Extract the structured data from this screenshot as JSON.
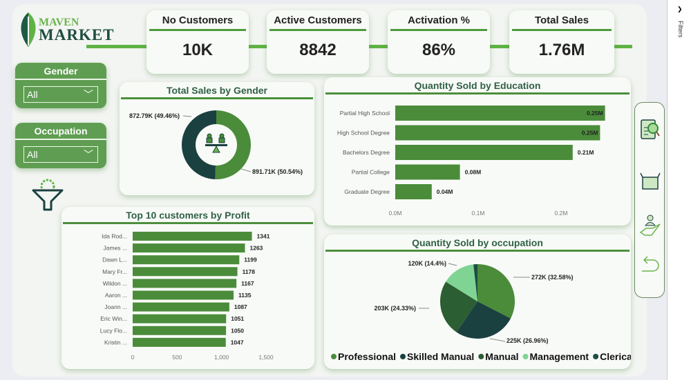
{
  "brand": {
    "line1": "MAVEN",
    "line2": "MARKET"
  },
  "kpis": [
    {
      "title": "No Customers",
      "value": "10K"
    },
    {
      "title": "Active Customers",
      "value": "8842"
    },
    {
      "title": "Activation %",
      "value": "86%"
    },
    {
      "title": "Total Sales",
      "value": "1.76M"
    }
  ],
  "slicers": [
    {
      "title": "Gender",
      "value": "All"
    },
    {
      "title": "Occupation",
      "value": "All"
    }
  ],
  "filters_pane": {
    "label": "Filters"
  },
  "nav_icons": [
    "report-search-icon",
    "product-box-icon",
    "customer-hand-icon",
    "back-arrow-icon"
  ],
  "colors": {
    "primary": "#4a8c3a",
    "dark": "#1b4040",
    "accent": "#5fb345"
  },
  "chart_data": [
    {
      "type": "pie",
      "title": "Total Sales by Gender",
      "donut": true,
      "slices": [
        {
          "value": 872.79,
          "percent": 49.46,
          "label": "872.79K (49.46%)",
          "color": "#1b4040"
        },
        {
          "value": 891.71,
          "percent": 50.54,
          "label": "891.71K (50.54%)",
          "color": "#4a8c3a"
        }
      ]
    },
    {
      "type": "bar",
      "title": "Quantity Sold by Education",
      "orientation": "horizontal",
      "categories": [
        "Partial High School",
        "High School Degree",
        "Bachelors Degree",
        "Partial College",
        "Graduate Degree"
      ],
      "values": [
        0.253,
        0.247,
        0.214,
        0.078,
        0.044
      ],
      "data_labels": [
        "0.25M",
        "0.25M",
        "0.21M",
        "0.08M",
        "0.04M"
      ],
      "xticks": [
        "0.0M",
        "0.1M",
        "0.2M"
      ],
      "xlim": [
        0,
        0.27
      ],
      "grid": false
    },
    {
      "type": "bar",
      "title": "Top 10 customers by Profit",
      "orientation": "horizontal",
      "categories": [
        "Ida Rod...",
        "James ...",
        "Dawn L...",
        "Mary Fr...",
        "Wildon ...",
        "Aaron ...",
        "Joann ...",
        "Eric Win...",
        "Lucy Flo...",
        "Kristin ..."
      ],
      "values": [
        1341,
        1263,
        1199,
        1178,
        1167,
        1135,
        1087,
        1051,
        1050,
        1047
      ],
      "xticks": [
        "0",
        "500",
        "1,000",
        "1,500"
      ],
      "xlim": [
        0,
        1500
      ],
      "grid": false
    },
    {
      "type": "pie",
      "title": "Quantity Sold by occupation",
      "legend": "bottom",
      "slices": [
        {
          "name": "Professional",
          "percent": 32.58,
          "label": "272K (32.58%)",
          "color": "#4a8c3a"
        },
        {
          "name": "Skilled Manual",
          "percent": 26.96,
          "label": "225K (26.96%)",
          "color": "#1b4040"
        },
        {
          "name": "Manual",
          "percent": 24.33,
          "label": "203K (24.33%)",
          "color": "#2b5e33"
        },
        {
          "name": "Management",
          "percent": 14.4,
          "label": "120K (14.4%)",
          "color": "#7fd494"
        },
        {
          "name": "Clerical",
          "percent": 1.73,
          "label": "",
          "color": "#1e4d44"
        }
      ]
    }
  ]
}
